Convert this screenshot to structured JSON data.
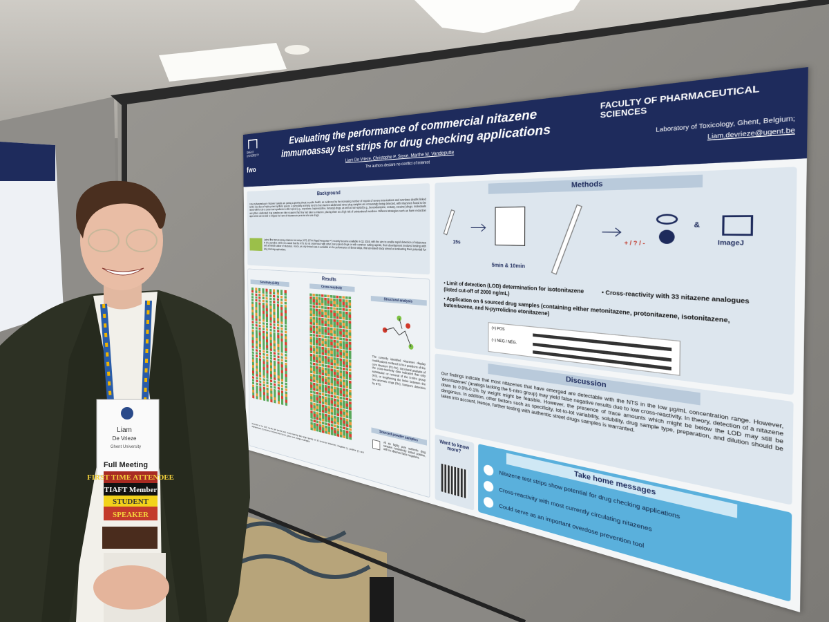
{
  "poster": {
    "university": "GHENT UNIVERSITY",
    "funder": "fwo",
    "title": "Evaluating the performance of commercial nitazene immunoassay test strips for drug checking applications",
    "authors": "Liam De Vrieze, Christophe P. Stove, Marthe M. Vandeputte",
    "disclaimer": "The authors declare no conflict of interest",
    "faculty": "FACULTY OF PHARMACEUTICAL SCIENCES",
    "affiliation": "Laboratory of Toxicology, Ghent, Belgium;",
    "email": "Liam.devrieze@ugent.be",
    "background": {
      "heading": "Background",
      "text": [
        "2-Benzylbenzimidazole 'nitazene' opioids are posing a growing threat to public health, as evidenced by the increasing number of reports of severe intoxications and overdose deaths linked to this new class of highly potent synthetic opioids. A particularly worrying trend is that nitazene-adulterated street drug samples are increasingly being detected, with nitazenes found to be mixed with heroin or present as ingredients in other opioid (e.g., oxycodone, buprenorphine, fentanyl) drugs, as well as non-opioid (e.g., benzodiazepine, ecstasy, cocaine) drugs. Individuals using these adulterated drug samples are often unaware that they had taken a nitazene, placing them at a high risk of unintentional overdose. Different strategies such as harm reduction approaches are needed to mitigate the harm of nitazenes in persons who use drugs.",
        "Lateral flow immunoassay nitazene test strips (NTS; BTNX Rapid Response™) recently became available in Q1 2024, with the aim to enable rapid detection of nitazenes in drug samples. While it is stated that the NTS do not cross-react with other (non-)opioid drugs or with common cutting agents, their development involved testing with only a limited number of nitazenes. Hence, as only limited data is available on the performance of these strips, this lab-based study aimed at evaluating their potential for drug checking applications."
      ]
    },
    "results": {
      "heading": "Results",
      "sensitivity": "Sensitivity (LOD)",
      "cross_reactivity": "Cross-reactivity",
      "structural": "Structural analysis",
      "structural_text": "The currently identified nitazenes display modifications confined to four positions of the core structure (R1-R4). Structural analysis of the cross-reactivity data indicated that only substitution or removal of the 5-nitro group (R3), or lengthening the linker between the two aromatic rings (R4), hampers detection by NTS.",
      "sourced": "Sourced powder samples",
      "sourced_text": "All six highly pure authentic drug samples consistently tested positive, with no observed false negatives.",
      "caption": "Overview of the LOD results (left panels) and cross-reactivity data (right panel) for 35 screened nitazenes. Negative (-), positive (+) and indeterminate (?) results are represented by red, green, and orange rectangles."
    },
    "methods": {
      "heading": "Methods",
      "time_short": "15s",
      "time_long": "5min & 10min",
      "readout": "+ / ? / -",
      "and": "&",
      "software": "ImageJ",
      "bullets": [
        "Limit of detection (LOD) determination for isotonitazene (listed cut-off of 2000 ng/mL)",
        "Cross-reactivity with 33 nitazene analogues",
        "Application on 6 sourced drug samples (containing either metonitazene, protonitazene, isotonitazene, butonitazene, and N-pyrrolidino etonitazene)"
      ],
      "strip_positive": "(+) POS",
      "strip_negative": "(−) NEG / NÉG."
    },
    "discussion": {
      "heading": "Discussion",
      "text": "Our findings indicate that most nitazenes that have emerged are detectable with the NTS in the low µg/mL concentration range. However, 'desnitazenes' (analogs lacking the 5-nitro group) may yield false negative results due to low cross-reactivity. In theory, detection of a nitazene down to 0.9%-0.1% by weight might be feasible. However, the presence of trace amounts which might be below the LOD may still be dangerous. In addition, other factors such as specificity, lot-to-lot variability, solubility, drug sample type, preparation, and dilution should be taken into account. Hence, further testing with authentic street drugs samples is warranted."
    },
    "qr_prompt": "Want to know more?",
    "take_home": {
      "heading": "Take home messages",
      "items": [
        "Nitazene test strips show potential for drug checking applications",
        "Cross-reactivity with most currently circulating nitazenes",
        "Could serve as an important overdose prevention tool"
      ]
    }
  },
  "badge": {
    "first_name": "Liam",
    "last_name": "De Vrieze",
    "institution": "Ghent University",
    "registration": "Full Meeting",
    "ribbons": [
      "FIRST TIME ATTENDEE",
      "TIAFT Member",
      "STUDENT",
      "SPEAKER"
    ]
  }
}
